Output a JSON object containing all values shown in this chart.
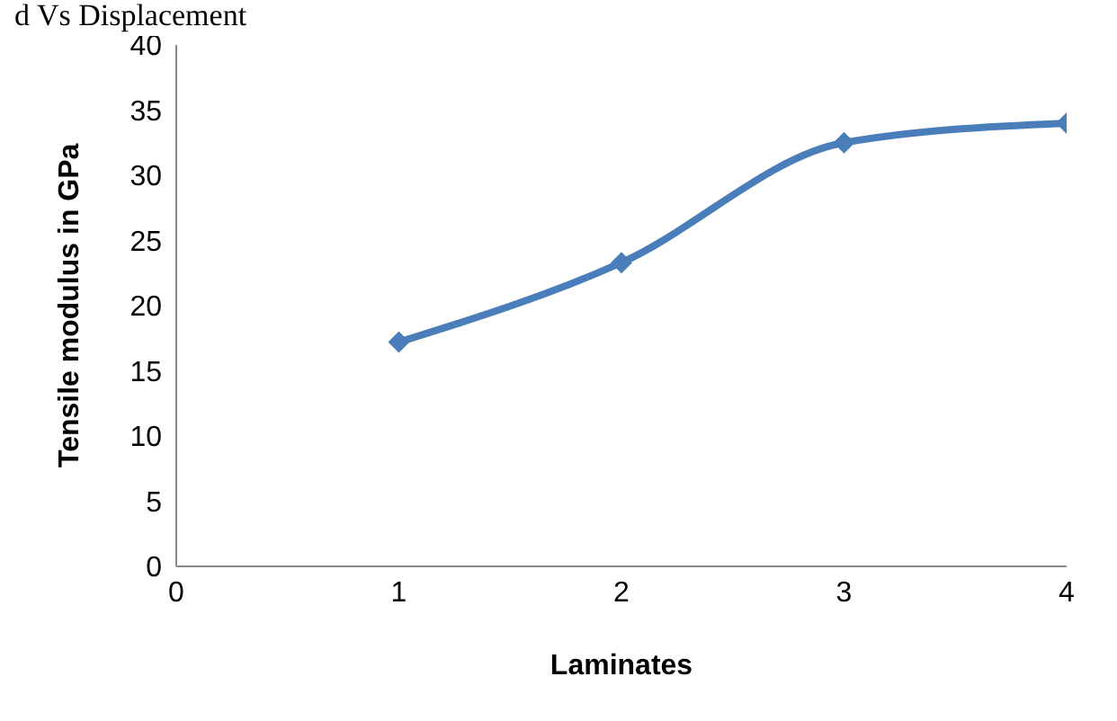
{
  "chart_data": {
    "type": "line",
    "xlabel": "Laminates",
    "ylabel": "Tensile modulus in GPa",
    "annotations": [
      "d Vs Displacement"
    ],
    "x": [
      1,
      2,
      3,
      4
    ],
    "series": [
      {
        "color": "#4a7ebb",
        "values": [
          17.2,
          23.3,
          32.5,
          34
        ]
      }
    ],
    "xlim": [
      0,
      4
    ],
    "xticks": [
      0,
      1,
      2,
      3,
      4
    ],
    "ylim": [
      0,
      40
    ],
    "yticks": [
      0,
      5,
      10,
      15,
      20,
      25,
      30,
      35,
      40
    ],
    "grid": false,
    "legend": false,
    "marker": "diamond",
    "line_style": "solid"
  }
}
